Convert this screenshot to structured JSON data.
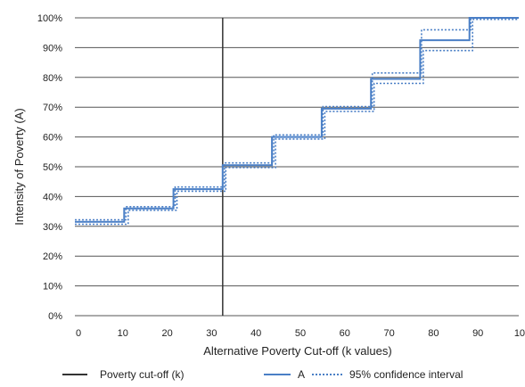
{
  "chart_data": {
    "type": "line",
    "xlabel": "Alternative Poverty Cut-off (k values)",
    "ylabel": "Intensity of Poverty (A)",
    "xlim": [
      0,
      100
    ],
    "ylim": [
      0,
      100
    ],
    "x_ticks": [
      "0",
      "10",
      "20",
      "30",
      "40",
      "50",
      "60",
      "70",
      "80",
      "90",
      "100"
    ],
    "y_ticks": [
      "0%",
      "10%",
      "20%",
      "30%",
      "40%",
      "50%",
      "60%",
      "70%",
      "80%",
      "90%",
      "100%"
    ],
    "grid": true,
    "cutoff_x": 33.3,
    "series": [
      {
        "name": "A",
        "style": "solid",
        "color": "#4a7fc6",
        "x": [
          0,
          11.1,
          11.1,
          22.2,
          22.2,
          33.3,
          33.3,
          44.4,
          44.4,
          55.6,
          55.6,
          66.7,
          66.7,
          77.8,
          77.8,
          88.9,
          88.9,
          100
        ],
        "y": [
          31.5,
          31.5,
          36,
          36,
          42.5,
          42.5,
          50.5,
          50.5,
          60,
          60,
          69.5,
          69.5,
          79.5,
          79.5,
          92.5,
          92.5,
          100,
          100
        ]
      },
      {
        "name": "95% confidence interval",
        "style": "dotted",
        "color": "#4a7fc6",
        "x": [
          0,
          11.5,
          11.5,
          22.6,
          22.6,
          33.7,
          33.7,
          44.8,
          44.8,
          55.9,
          55.9,
          67,
          67,
          78.1,
          78.1,
          89.2,
          89.2,
          100
        ],
        "y": [
          32.2,
          32.2,
          36.6,
          36.6,
          43.2,
          43.2,
          51.3,
          51.3,
          60.7,
          60.7,
          70.2,
          70.2,
          81.5,
          81.5,
          96,
          96,
          100,
          100
        ]
      },
      {
        "name": "95% confidence interval lower",
        "style": "dotted",
        "color": "#4a7fc6",
        "x": [
          0,
          12,
          12,
          23,
          23,
          34,
          34,
          45.2,
          45.2,
          56.3,
          56.3,
          67.4,
          67.4,
          78.5,
          78.5,
          89.6,
          89.6,
          100
        ],
        "y": [
          30.7,
          30.7,
          35.4,
          35.4,
          41.8,
          41.8,
          49.7,
          49.7,
          59.3,
          59.3,
          68.6,
          68.6,
          78,
          78,
          89,
          89,
          99.5,
          99.5
        ]
      }
    ],
    "legend": {
      "placement": "bottom",
      "items": [
        "Poverty cut-off (k)",
        "A",
        "95% confidence interval"
      ]
    }
  },
  "colors": {
    "grid": "#555555",
    "cutoff": "#333333",
    "series": "#4a7fc6"
  }
}
